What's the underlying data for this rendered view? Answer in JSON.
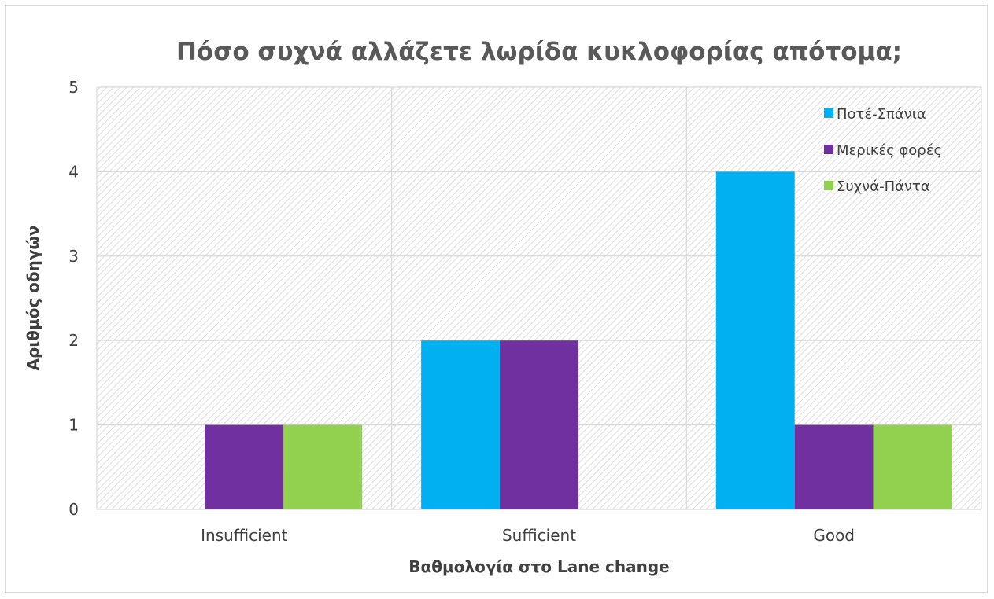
{
  "chart_data": {
    "type": "bar",
    "title": "Πόσο συχνά αλλάζετε λωρίδα κυκλοφορίας απότομα;",
    "xlabel": "Βαθμολογία στο Lane change",
    "ylabel": "Αριθμός οδηγών",
    "categories": [
      "Insufficient",
      "Sufficient",
      "Good"
    ],
    "series": [
      {
        "name": "Ποτέ-Σπάνια",
        "values": [
          0,
          2,
          4
        ],
        "color": "#00b0f0"
      },
      {
        "name": "Μερικές φορές",
        "values": [
          1,
          2,
          1
        ],
        "color": "#7030a0"
      },
      {
        "name": "Συχνά-Πάντα",
        "values": [
          1,
          0,
          1
        ],
        "color": "#92d050"
      }
    ],
    "ylim": [
      0,
      5
    ],
    "yticks": [
      "0",
      "1",
      "2",
      "3",
      "4",
      "5"
    ],
    "grid": true,
    "legend_position": "top-right"
  }
}
